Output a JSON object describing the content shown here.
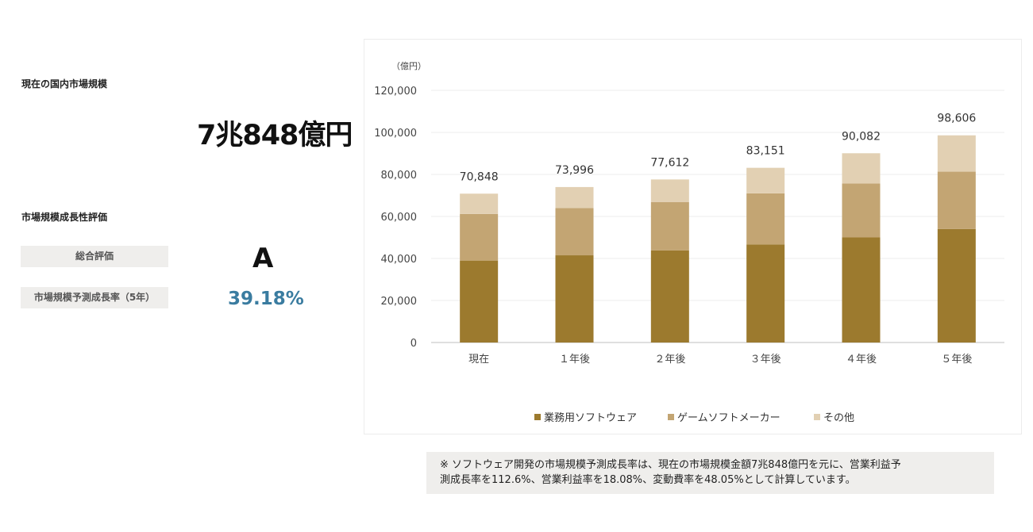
{
  "summary": {
    "market_size_label": "現在の国内市場規模",
    "market_size_value": "7兆848億円",
    "growth_section_label": "市場規模成長性評価",
    "overall_rating_label": "総合評価",
    "overall_rating_value": "A",
    "growth_rate_label": "市場規模予測成長率（5年）",
    "growth_rate_value": "39.18%"
  },
  "chart_data": {
    "type": "bar",
    "stacked": true,
    "unit_label": "（億円）",
    "categories": [
      "現在",
      "1年後",
      "2年後",
      "3年後",
      "4年後",
      "5年後"
    ],
    "category_labels": [
      "現在",
      "１年後",
      "２年後",
      "３年後",
      "４年後",
      "５年後"
    ],
    "series": [
      {
        "name": "業務用ソフトウェア",
        "color": "#9c7a2e",
        "values": [
          39000,
          41500,
          43800,
          46700,
          50000,
          54000
        ]
      },
      {
        "name": "ゲームソフトメーカー",
        "color": "#c3a573",
        "values": [
          22200,
          22500,
          23000,
          24300,
          25700,
          27300
        ]
      },
      {
        "name": "その他",
        "color": "#e2d0b3",
        "values": [
          9648,
          9996,
          10812,
          12151,
          14382,
          17306
        ]
      }
    ],
    "totals": [
      70848,
      73996,
      77612,
      83151,
      90082,
      98606
    ],
    "total_labels": [
      "70,848",
      "73,996",
      "77,612",
      "83,151",
      "90,082",
      "98,606"
    ],
    "ylim": [
      0,
      120000
    ],
    "yticks": [
      0,
      20000,
      40000,
      60000,
      80000,
      100000,
      120000
    ],
    "ytick_labels": [
      "0",
      "20,000",
      "40,000",
      "60,000",
      "80,000",
      "100,000",
      "120,000"
    ],
    "grid": true,
    "legend_position": "bottom"
  },
  "note": {
    "line1": "※ ソフトウェア開発の市場規模予測成長率は、現在の市場規模金額7兆848億円を元に、営業利益予",
    "line2": "測成長率を112.6%、営業利益率を18.08%、変動費率を48.05%として計算しています。"
  }
}
